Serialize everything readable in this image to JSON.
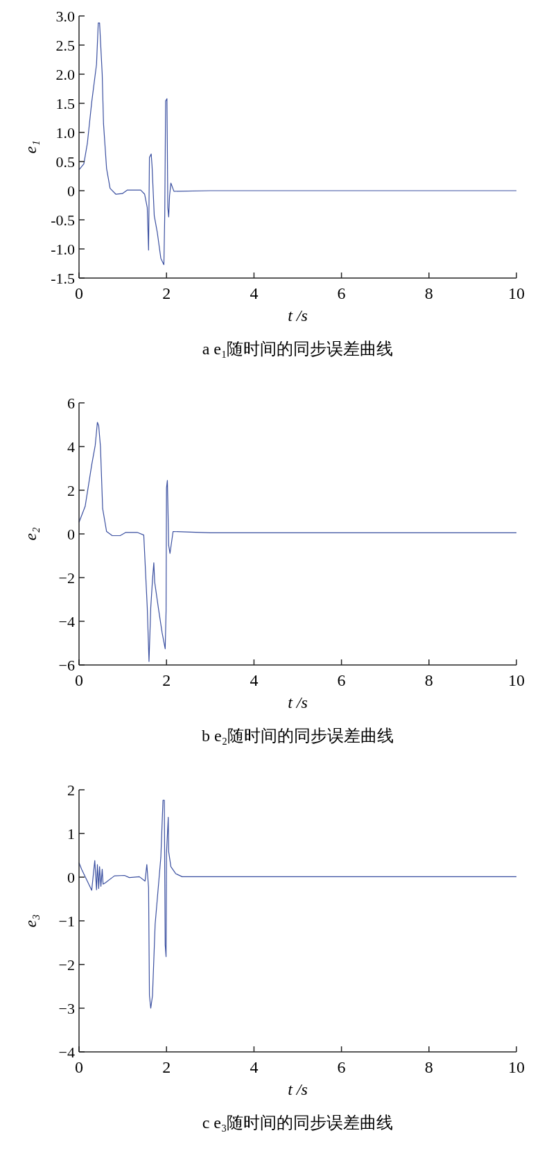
{
  "chart_data": [
    {
      "type": "line",
      "xlabel": "t /s",
      "ylabel": "e₁",
      "annotations": [
        "a e₁随时间的同步误差曲线"
      ],
      "xlim": [
        0,
        10
      ],
      "xticks": [
        0,
        2,
        4,
        6,
        8,
        10
      ],
      "ylim": [
        -1.5,
        3
      ],
      "yticks": [
        {
          "value": 3,
          "label": "3.0"
        },
        2.5,
        {
          "value": 2,
          "label": "2.0"
        },
        1.5,
        {
          "value": 1,
          "label": "1.0"
        },
        0.5,
        0,
        -0.5,
        {
          "value": -1,
          "label": "-1.0"
        },
        -1.5
      ],
      "grid": false,
      "series": [
        {
          "color": "#3a4fa0",
          "x": [
            0,
            0.11,
            0.19,
            0.29,
            0.4,
            0.44,
            0.47,
            0.53,
            0.56,
            0.63,
            0.71,
            0.84,
            0.99,
            1.1,
            1.41,
            1.5,
            1.56,
            1.59,
            1.61,
            1.65,
            1.67,
            1.72,
            1.79,
            1.87,
            1.94,
            1.96,
            1.98,
            2.01,
            2.03,
            2.05,
            2.07,
            2.1,
            2.17,
            3,
            4,
            5,
            6,
            7,
            8,
            9,
            10
          ],
          "values": [
            0.36,
            0.46,
            0.81,
            1.52,
            2.17,
            2.88,
            2.88,
            2.0,
            1.15,
            0.38,
            0.04,
            -0.06,
            -0.05,
            0.01,
            0.01,
            -0.06,
            -0.29,
            -1.02,
            0.57,
            0.63,
            0.42,
            -0.43,
            -0.72,
            -1.16,
            -1.27,
            -0.41,
            1.54,
            1.58,
            -0.29,
            -0.45,
            -0.09,
            0.13,
            -0.01,
            0,
            0,
            0,
            0,
            0,
            0,
            0,
            0
          ]
        }
      ]
    },
    {
      "type": "line",
      "xlabel": "t /s",
      "ylabel": "e₂",
      "annotations": [
        "b e₂随时间的同步误差曲线"
      ],
      "xlim": [
        0,
        10
      ],
      "xticks": [
        0,
        2,
        4,
        6,
        8,
        10
      ],
      "ylim": [
        -6,
        6
      ],
      "yticks": [
        6,
        4,
        2,
        0,
        {
          "value": -2,
          "label": "−2"
        },
        {
          "value": -4,
          "label": "−4"
        },
        {
          "value": -6,
          "label": "−6"
        }
      ],
      "grid": false,
      "series": [
        {
          "color": "#3a4fa0",
          "x": [
            0,
            0.14,
            0.29,
            0.37,
            0.42,
            0.45,
            0.49,
            0.54,
            0.63,
            0.76,
            0.94,
            1.07,
            1.33,
            1.48,
            1.56,
            1.6,
            1.64,
            1.68,
            1.71,
            1.73,
            1.82,
            1.9,
            1.97,
            1.99,
            2.0,
            2.02,
            2.05,
            2.08,
            2.15,
            3,
            4,
            5,
            6,
            7,
            8,
            9,
            10
          ],
          "values": [
            0.53,
            1.26,
            3.16,
            4.05,
            5.11,
            4.95,
            4.0,
            1.16,
            0.11,
            -0.08,
            -0.08,
            0.07,
            0.07,
            -0.05,
            -3.37,
            -5.84,
            -3.37,
            -2.1,
            -1.32,
            -2.21,
            -3.47,
            -4.53,
            -5.26,
            -3.53,
            2.11,
            2.45,
            -0.53,
            -0.89,
            0.11,
            0.05,
            0.05,
            0.05,
            0.05,
            0.05,
            0.05,
            0.05,
            0.05
          ]
        }
      ]
    },
    {
      "type": "line",
      "xlabel": "t /s",
      "ylabel": "e₃",
      "annotations": [
        "c e₃随时间的同步误差曲线"
      ],
      "xlim": [
        0,
        10
      ],
      "xticks": [
        0,
        2,
        4,
        6,
        8,
        10
      ],
      "ylim": [
        -4,
        2
      ],
      "yticks": [
        2,
        1,
        0,
        {
          "value": -1,
          "label": "−1"
        },
        {
          "value": -2,
          "label": "−2"
        },
        {
          "value": -3,
          "label": "−3"
        },
        {
          "value": -4,
          "label": "−4"
        }
      ],
      "grid": false,
      "series": [
        {
          "color": "#3a4fa0",
          "x": [
            0,
            0.06,
            0.29,
            0.36,
            0.4,
            0.42,
            0.45,
            0.47,
            0.5,
            0.53,
            0.55,
            0.6,
            0.81,
            1.04,
            1.15,
            1.38,
            1.51,
            1.55,
            1.59,
            1.61,
            1.64,
            1.68,
            1.74,
            1.87,
            1.92,
            1.95,
            1.97,
            1.99,
            2.0,
            2.04,
            2.05,
            2.1,
            2.21,
            2.36,
            4,
            6,
            8,
            10
          ],
          "values": [
            0.33,
            0.18,
            -0.3,
            0.38,
            -0.29,
            0.29,
            -0.26,
            0.24,
            -0.21,
            0.18,
            -0.16,
            -0.13,
            0.03,
            0.04,
            -0.01,
            0.01,
            -0.09,
            0.29,
            -0.24,
            -2.71,
            -3.0,
            -2.71,
            -1.08,
            0.45,
            1.76,
            1.76,
            -1.55,
            -1.82,
            0.55,
            1.37,
            0.58,
            0.24,
            0.08,
            0.01,
            0.01,
            0.01,
            0.01,
            0.01
          ]
        }
      ]
    }
  ]
}
